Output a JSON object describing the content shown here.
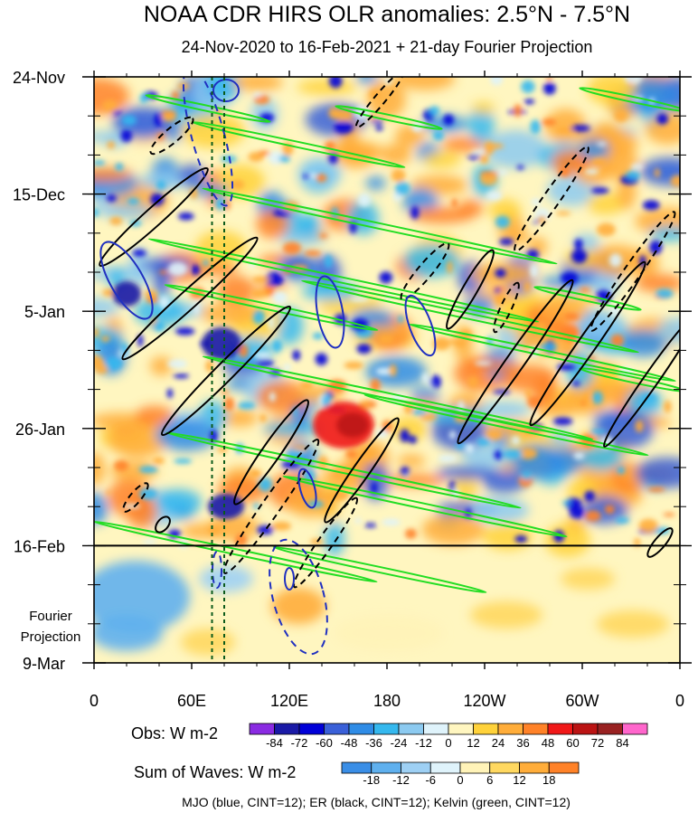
{
  "chart_data": {
    "type": "heatmap",
    "title": "NOAA CDR HIRS OLR anomalies: 2.5°N - 7.5°N",
    "subtitle": "24-Nov-2020 to 16-Feb-2021 + 21-day Fourier Projection",
    "x_axis": {
      "quantity": "longitude",
      "range": [
        "0",
        "0"
      ],
      "tick_labels": [
        "0",
        "60E",
        "120E",
        "180",
        "120W",
        "60W",
        "0"
      ],
      "tick_values_deg_east": [
        0,
        60,
        120,
        180,
        240,
        300,
        360
      ]
    },
    "y_axis": {
      "quantity": "date",
      "range": [
        "2020-11-24",
        "2021-03-09"
      ],
      "direction": "downward",
      "tick_labels": [
        "24-Nov",
        "15-Dec",
        "5-Jan",
        "26-Jan",
        "16-Feb",
        "9-Mar"
      ],
      "tick_dates": [
        "2020-11-24",
        "2020-12-15",
        "2021-01-05",
        "2021-01-26",
        "2021-02-16",
        "2021-03-09"
      ]
    },
    "projection_label": [
      "Fourier",
      "Projection"
    ],
    "observation_end": "2021-02-16",
    "reference_longitudes_deg_east": [
      72.5,
      80
    ],
    "obs_colorbar": {
      "label": "Obs: W m-2",
      "levels": [
        -84,
        -72,
        -60,
        -48,
        -36,
        -24,
        -12,
        0,
        12,
        24,
        36,
        48,
        60,
        72,
        84
      ],
      "colors": [
        "#8a2be2",
        "#1a1aa6",
        "#0000d8",
        "#3a60d8",
        "#2f8ce6",
        "#35b8ee",
        "#8ccaf0",
        "#dff3fb",
        "#fff6c0",
        "#ffd23a",
        "#ffad3a",
        "#ff8228",
        "#f01818",
        "#bb1414",
        "#992222",
        "#ff66cc"
      ]
    },
    "wave_colorbar": {
      "label": "Sum of Waves: W m-2",
      "levels": [
        -18,
        -12,
        -6,
        0,
        6,
        12,
        18
      ],
      "colors": [
        "#3a8ee6",
        "#5fb0ee",
        "#9ed0f4",
        "#dff3fb",
        "#fff3b8",
        "#ffd860",
        "#ffad3a",
        "#ff8228"
      ]
    },
    "footnote": "MJO (blue, CINT=12); ER (black, CINT=12); Kelvin (green, CINT=12)",
    "contour_series": [
      {
        "name": "MJO",
        "color": "#2030c0",
        "cint": 12
      },
      {
        "name": "ER",
        "color": "#000000",
        "cint": 12
      },
      {
        "name": "Kelvin",
        "color": "#22dd22",
        "cint": 12
      }
    ]
  }
}
